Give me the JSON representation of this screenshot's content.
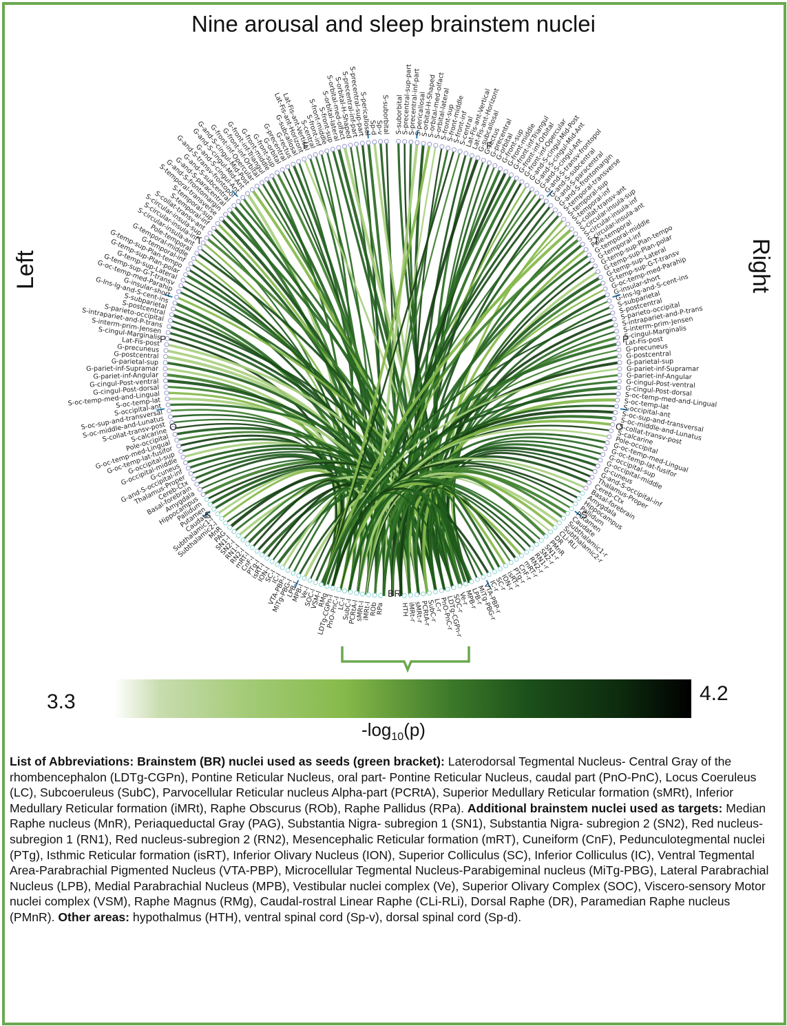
{
  "title": "Nine arousal and sleep brainstem nuclei",
  "side_labels": {
    "left": "Left",
    "right": "Right"
  },
  "lobes": {
    "frontal": "F",
    "temporal": "T",
    "parietal": "P",
    "occipital": "O",
    "subcortical": "S",
    "brainstem": "BR"
  },
  "colors": {
    "frame": "#6aa84f",
    "chord_dark": "#1b4f1a",
    "chord_light": "#86b94a",
    "node": "#9999cc",
    "tick": "#1f77b4"
  },
  "colorbar": {
    "min": "3.3",
    "max": "4.2",
    "label_prefix": "-log",
    "label_sub": "10",
    "label_suffix": "(p)"
  },
  "left_labels": [
    "S-suborbital",
    "Sp-v",
    "Sp-d",
    "S-pericallosal",
    "S-precentral-sup-part",
    "S-precentral-inf-part",
    "S-orbital-H-Shaped",
    "S-orbital-med-olfact",
    "S-orbital-lateral",
    "S-front-sup",
    "S-front-middle",
    "S-front-inf",
    "S-central",
    "Lat-Fis-ant-Vertical",
    "Lat-Fis-ant-Horizont",
    "G-subcallosal",
    "G-rectus",
    "G-precentral",
    "G-orbital",
    "G-front-sup",
    "G-front-middle",
    "G-front-inf-Triangul",
    "G-front-inf-Orbital",
    "G-front-inf-Opercular",
    "G-and-S-cingul-Mid-Post",
    "G-and-S-cingul-Mid-Ant",
    "G-and-S-cingul-Ant",
    "G-and-S-transv-frontopol",
    "G-and-S-subcentral",
    "G-and-S-paracentral",
    "G-and-S-frontomargin",
    "S-temporal-transverse",
    "S-temporal-sup",
    "S-temporal-inf",
    "S-collat-transv-ant",
    "S-circular-insula-sup",
    "S-circular-insula-inf",
    "S-circular-insula-ant",
    "Pole-temporal",
    "G-temporal-middle",
    "G-temporal-inf",
    "G-temp-sup-Plan-tempo",
    "G-temp-sup-Plan-polar",
    "G-temp-sup-Lateral",
    "G-temp-sup-G-T-transv",
    "G-oc-temp-med-Parahip",
    "G-insular-short",
    "G-Ins-lg-and-S-cent-ins",
    "S-subparietal",
    "S-postcentral",
    "S-parieto-occipital",
    "S-intrapariet-and-P-trans",
    "S-interm-prim-Jensen",
    "S-cingul-Marginalis",
    "Lat-Fis-post",
    "G-precuneus",
    "G-postcentral",
    "G-parietal-sup",
    "G-pariet-inf-Supramar",
    "G-pariet-inf-Angular",
    "G-cingul-Post-ventral",
    "G-cingul-Post-dorsal",
    "S-oc-temp-med-and-Lingual",
    "S-oc-temp-lat",
    "S-occipital-ant",
    "S-oc-sup-and-transversal",
    "S-oc-middle-and-Lunatus",
    "S-collat-transv-post",
    "S-calcarine",
    "Pole-occipital",
    "G-oc-temp-med-Lingual",
    "G-oc-temp-lat-fusifor",
    "G-occipital-sup",
    "G-occipital-middle",
    "G-cuneus",
    "G-and-S-occipital-inf",
    "Thalamus-Proper",
    "Cereb-Ctx",
    "Basal-forebrain",
    "Amygdala",
    "Hippocampus",
    "Pallidum",
    "Putamen",
    "Caudate",
    "Subthalamic1-l",
    "Subthalamic2-l",
    "MnR",
    "PAG",
    "SN1-l",
    "SN2-l",
    "RN1-l",
    "RN2-l",
    "mRT-l",
    "CnF-l",
    "PTg-l",
    "isRT-l",
    "ION-l",
    "SC-l",
    "IC-l",
    "VTA-PBP-l",
    "MiTg-PBG-l",
    "LPB-l",
    "MPB-l",
    "Ve-l",
    "SOC-l",
    "VSM-l",
    "RMg",
    "LDTg-CGPn-l",
    "PnO-PnC-l",
    "LC-l",
    "SubC-l",
    "PCRtA-l",
    "sMRt-l",
    "iMRt-l",
    "ROb",
    "RPa"
  ],
  "right_labels": [
    "S-suborbital",
    "S-precentral-sup-part",
    "S-precentral-inf-part",
    "S-pericallosal",
    "S-orbital-H-Shaped",
    "S-orbital-med-olfact",
    "S-orbital-lateral",
    "S-front-sup",
    "S-front-middle",
    "S-front-inf",
    "S-central",
    "Lat-Fis-ant-Vertical",
    "Lat-Fis-ant-Horizont",
    "G-subcallosal",
    "G-rectus",
    "G-precentral",
    "G-orbital",
    "G-front-sup",
    "G-front-middle",
    "G-front-inf-Triangul",
    "G-front-inf-Orbital",
    "G-front-inf-Opercular",
    "G-and-S-cingul-Mid-Post",
    "G-and-S-cingul-Mid-Ant",
    "G-and-S-cingul-Ant",
    "G-and-S-transv-frontopol",
    "G-and-S-subcentral",
    "G-and-S-paracentral",
    "G-and-S-frontomargin",
    "S-temporal-transverse",
    "S-temporal-sup",
    "S-temporal-inf",
    "S-collat-transv-ant",
    "S-circular-insula-sup",
    "S-circular-insula-inf",
    "S-circular-insula-ant",
    "Pole-temporal",
    "G-temporal-middle",
    "G-temporal-inf",
    "G-temp-sup-Plan-tempo",
    "G-temp-sup-Plan-polar",
    "G-temp-sup-Lateral",
    "G-temp-sup-G-T-transv",
    "G-oc-temp-med-Parahip",
    "G-insular-short",
    "G-Ins-lg-and-S-cent-ins",
    "S-subparietal",
    "S-postcentral",
    "S-parieto-occipital",
    "S-intrapariet-and-P-trans",
    "S-interm-prim-Jensen",
    "S-cingul-Marginalis",
    "Lat-Fis-post",
    "G-precuneus",
    "G-postcentral",
    "G-parietal-sup",
    "G-pariet-inf-Supramar",
    "G-pariet-inf-Angular",
    "G-cingul-Post-ventral",
    "G-cingul-Post-dorsal",
    "S-oc-temp-med-and-Lingual",
    "S-oc-temp-lat",
    "S-occipital-ant",
    "S-oc-sup-and-transversal",
    "S-oc-middle-and-Lunatus",
    "S-collat-transv-post",
    "S-calcarine",
    "Pole-occipital",
    "G-oc-temp-med-Lingual",
    "G-oc-temp-lat-fusifor",
    "G-occipital-sup",
    "G-occipital-middle",
    "G-cuneus",
    "G-and-S-occipital-inf",
    "Thalamus-Proper",
    "Cereb-Ctx",
    "Basal-forebrain",
    "Amygdala",
    "Hippocampus",
    "Pallidum",
    "Putamen",
    "Caudate",
    "Subthalamic1-r",
    "Subthalamic2-r",
    "CLi-RLi",
    "DR",
    "PMnR",
    "SN1-r",
    "SN2-r",
    "RN1-r",
    "RN2-r",
    "mRT-r",
    "CnF-r",
    "PTg-r",
    "isRT-r",
    "ION-r",
    "SC-r",
    "IC-r",
    "VTA-PBP-r",
    "MiTg-PBG-r",
    "LPB-r",
    "MPB-r",
    "Ve-r",
    "SOC-r",
    "LDTg-CGPn-r",
    "PnO-PnC-r",
    "LC-r",
    "SubC-r",
    "PCRtA-r",
    "sMRt-r",
    "iMRt-r",
    "HTH"
  ],
  "abbreviations": [
    {
      "bold": true,
      "text": "List of Abbreviations: Brainstem (BR) nuclei  used as seeds (green bracket):"
    },
    {
      "bold": false,
      "text": " Laterodorsal Tegmental Nucleus- Central Gray of the rhombencephalon (LDTg-CGPn), Pontine Reticular Nucleus, oral part- Pontine Reticular Nucleus, caudal part (PnO-PnC), Locus Coeruleus (LC), Subcoeruleus (SubC), Parvocellular Reticular nucleus Alpha-part (PCRtA), Superior Medullary Reticular formation (sMRt), Inferior Medullary Reticular formation (iMRt), Raphe Obscurus (ROb), Raphe Pallidus (RPa). "
    },
    {
      "bold": true,
      "text": "Additional brainstem nuclei used as targets:"
    },
    {
      "bold": false,
      "text": " Median Raphe nucleus (MnR), Periaqueductal Gray (PAG), Substantia Nigra- subregion 1 (SN1), Substantia Nigra- subregion 2 (SN2), Red nucleus-subregion 1 (RN1), Red nucleus-subregion 2 (RN2), Mesencephalic Reticular formation (mRT), Cuneiform (CnF), Pedunculotegmental nuclei (PTg), Isthmic Reticular formation (isRT), Inferior Olivary Nucleus (ION), Superior Colliculus (SC), Inferior Colliculus (IC), Ventral Tegmental Area-Parabrachial Pigmented Nucleus (VTA-PBP), Microcellular Tegmental Nucleus-Parabigeminal nucleus (MiTg-PBG), Lateral Parabrachial Nucleus (LPB), Medial Parabrachial Nucleus (MPB), Vestibular nuclei complex (Ve), Superior Olivary Complex (SOC), Viscero-sensory Motor nuclei complex (VSM), Raphe Magnus (RMg), Caudal-rostral Linear Raphe (CLi-RLi), Dorsal Raphe (DR), Paramedian Raphe nucleus (PMnR). "
    },
    {
      "bold": true,
      "text": "Other areas:"
    },
    {
      "bold": false,
      "text": " hypothalmus (HTH), ventral spinal cord (Sp-v), dorsal spinal cord (Sp-d)."
    }
  ]
}
